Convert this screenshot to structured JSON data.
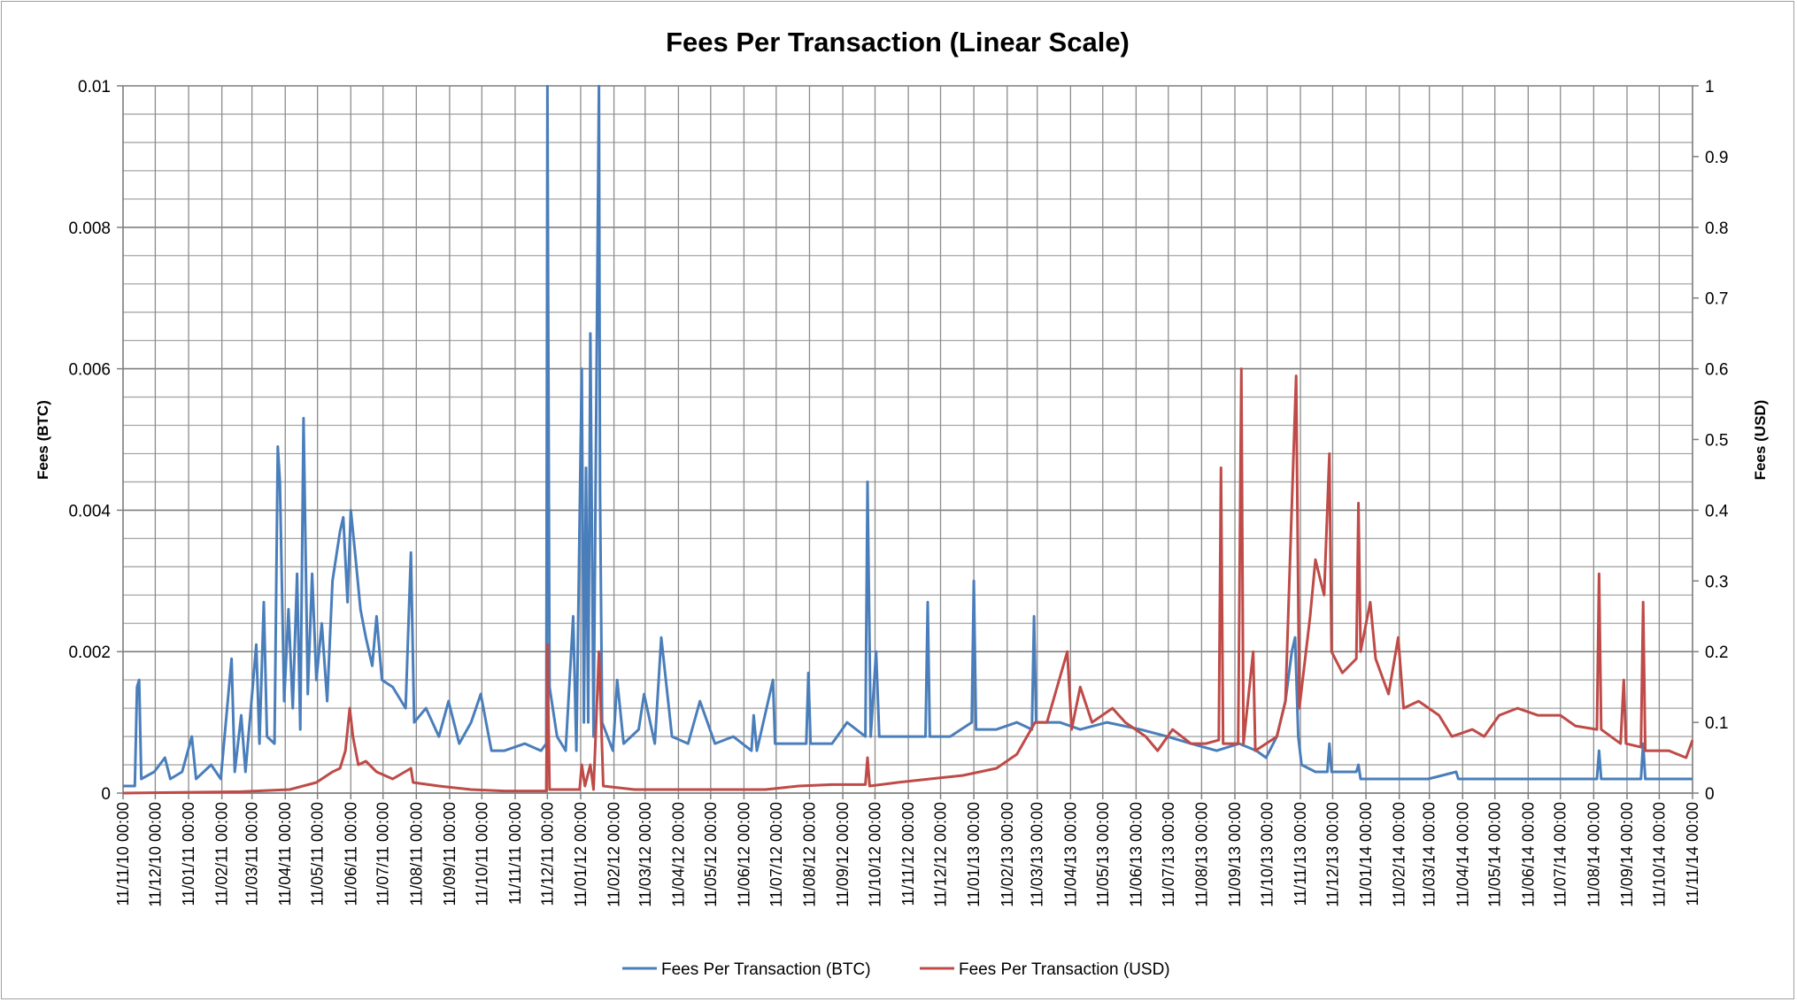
{
  "chart_data": {
    "type": "line",
    "title": "Fees Per Transaction (Linear Scale)",
    "ylabel": "Fees (BTC)",
    "y2label": "Fees (USD)",
    "ylim": [
      0,
      0.01
    ],
    "y2lim": [
      0,
      1
    ],
    "yticks": [
      "0",
      "0.002",
      "0.004",
      "0.006",
      "0.008",
      "0.01"
    ],
    "y2ticks": [
      "0",
      "0.1",
      "0.2",
      "0.3",
      "0.4",
      "0.5",
      "0.6",
      "0.7",
      "0.8",
      "0.9",
      "1"
    ],
    "xlim": [
      "2010-11-11",
      "2014-11-11"
    ],
    "xticks": [
      "11/11/10 00:00",
      "11/12/10 00:00",
      "11/01/11 00:00",
      "11/02/11 00:00",
      "11/03/11 00:00",
      "11/04/11 00:00",
      "11/05/11 00:00",
      "11/06/11 00:00",
      "11/07/11 00:00",
      "11/08/11 00:00",
      "11/09/11 00:00",
      "11/10/11 00:00",
      "11/11/11 00:00",
      "11/12/11 00:00",
      "11/01/12 00:00",
      "11/02/12 00:00",
      "11/03/12 00:00",
      "11/04/12 00:00",
      "11/05/12 00:00",
      "11/06/12 00:00",
      "11/07/12 00:00",
      "11/08/12 00:00",
      "11/09/12 00:00",
      "11/10/12 00:00",
      "11/11/12 00:00",
      "11/12/12 00:00",
      "11/01/13 00:00",
      "11/02/13 00:00",
      "11/03/13 00:00",
      "11/04/13 00:00",
      "11/05/13 00:00",
      "11/06/13 00:00",
      "11/07/13 00:00",
      "11/08/13 00:00",
      "11/09/13 00:00",
      "11/10/13 00:00",
      "11/11/13 00:00",
      "11/12/13 00:00",
      "11/01/14 00:00",
      "11/02/14 00:00",
      "11/03/14 00:00",
      "11/04/14 00:00",
      "11/05/14 00:00",
      "11/06/14 00:00",
      "11/07/14 00:00",
      "11/08/14 00:00",
      "11/09/14 00:00",
      "11/10/14 00:00",
      "11/11/14 00:00"
    ],
    "grid": true,
    "legend": "bottom",
    "series": [
      {
        "name": "Fees Per Transaction (BTC)",
        "axis": "left",
        "color": "#4a7ebb",
        "points": [
          [
            "2010-11-11",
            0.0001
          ],
          [
            "2010-11-22",
            0.0001
          ],
          [
            "2010-11-24",
            0.0015
          ],
          [
            "2010-11-26",
            0.0016
          ],
          [
            "2010-11-28",
            0.0002
          ],
          [
            "2010-12-10",
            0.0003
          ],
          [
            "2010-12-20",
            0.0005
          ],
          [
            "2010-12-25",
            0.0002
          ],
          [
            "2011-01-05",
            0.0003
          ],
          [
            "2011-01-14",
            0.0008
          ],
          [
            "2011-01-18",
            0.0002
          ],
          [
            "2011-02-01",
            0.0004
          ],
          [
            "2011-02-10",
            0.0002
          ],
          [
            "2011-02-20",
            0.0019
          ],
          [
            "2011-02-23",
            0.0003
          ],
          [
            "2011-03-01",
            0.0011
          ],
          [
            "2011-03-05",
            0.0003
          ],
          [
            "2011-03-15",
            0.0021
          ],
          [
            "2011-03-18",
            0.0007
          ],
          [
            "2011-03-22",
            0.0027
          ],
          [
            "2011-03-25",
            0.0008
          ],
          [
            "2011-04-01",
            0.0007
          ],
          [
            "2011-04-04",
            0.0049
          ],
          [
            "2011-04-06",
            0.0044
          ],
          [
            "2011-04-10",
            0.0013
          ],
          [
            "2011-04-14",
            0.0026
          ],
          [
            "2011-04-18",
            0.0012
          ],
          [
            "2011-04-22",
            0.0031
          ],
          [
            "2011-04-25",
            0.0009
          ],
          [
            "2011-04-28",
            0.0053
          ],
          [
            "2011-05-02",
            0.0014
          ],
          [
            "2011-05-06",
            0.0031
          ],
          [
            "2011-05-10",
            0.0016
          ],
          [
            "2011-05-15",
            0.0024
          ],
          [
            "2011-05-20",
            0.0013
          ],
          [
            "2011-05-25",
            0.003
          ],
          [
            "2011-06-01",
            0.0037
          ],
          [
            "2011-06-04",
            0.0039
          ],
          [
            "2011-06-08",
            0.0027
          ],
          [
            "2011-06-11",
            0.004
          ],
          [
            "2011-06-15",
            0.0034
          ],
          [
            "2011-06-20",
            0.0026
          ],
          [
            "2011-06-25",
            0.0022
          ],
          [
            "2011-07-01",
            0.0018
          ],
          [
            "2011-07-05",
            0.0025
          ],
          [
            "2011-07-10",
            0.0016
          ],
          [
            "2011-07-20",
            0.0015
          ],
          [
            "2011-08-01",
            0.0012
          ],
          [
            "2011-08-06",
            0.0034
          ],
          [
            "2011-08-09",
            0.001
          ],
          [
            "2011-08-20",
            0.0012
          ],
          [
            "2011-09-01",
            0.0008
          ],
          [
            "2011-09-10",
            0.0013
          ],
          [
            "2011-09-20",
            0.0007
          ],
          [
            "2011-10-01",
            0.001
          ],
          [
            "2011-10-10",
            0.0014
          ],
          [
            "2011-10-20",
            0.0006
          ],
          [
            "2011-11-01",
            0.0006
          ],
          [
            "2011-11-20",
            0.0007
          ],
          [
            "2011-12-05",
            0.0006
          ],
          [
            "2011-12-10",
            0.0007
          ],
          [
            "2011-12-11",
            0.01
          ],
          [
            "2011-12-13",
            0.0015
          ],
          [
            "2011-12-20",
            0.0008
          ],
          [
            "2011-12-28",
            0.0006
          ],
          [
            "2012-01-04",
            0.0025
          ],
          [
            "2012-01-07",
            0.0006
          ],
          [
            "2012-01-12",
            0.006
          ],
          [
            "2012-01-14",
            0.001
          ],
          [
            "2012-01-16",
            0.0046
          ],
          [
            "2012-01-18",
            0.001
          ],
          [
            "2012-01-20",
            0.0065
          ],
          [
            "2012-01-23",
            0.0008
          ],
          [
            "2012-01-28",
            0.01
          ],
          [
            "2012-01-29",
            0.0043
          ],
          [
            "2012-01-31",
            0.001
          ],
          [
            "2012-02-10",
            0.0006
          ],
          [
            "2012-02-14",
            0.0016
          ],
          [
            "2012-02-20",
            0.0007
          ],
          [
            "2012-03-05",
            0.0009
          ],
          [
            "2012-03-10",
            0.0014
          ],
          [
            "2012-03-20",
            0.0007
          ],
          [
            "2012-03-26",
            0.0022
          ],
          [
            "2012-04-05",
            0.0008
          ],
          [
            "2012-04-20",
            0.0007
          ],
          [
            "2012-05-01",
            0.0013
          ],
          [
            "2012-05-15",
            0.0007
          ],
          [
            "2012-06-01",
            0.0008
          ],
          [
            "2012-06-18",
            0.0006
          ],
          [
            "2012-06-20",
            0.0011
          ],
          [
            "2012-06-23",
            0.0006
          ],
          [
            "2012-07-08",
            0.0016
          ],
          [
            "2012-07-10",
            0.0007
          ],
          [
            "2012-08-08",
            0.0007
          ],
          [
            "2012-08-10",
            0.0017
          ],
          [
            "2012-08-12",
            0.0007
          ],
          [
            "2012-09-01",
            0.0007
          ],
          [
            "2012-09-15",
            0.001
          ],
          [
            "2012-10-02",
            0.0008
          ],
          [
            "2012-10-04",
            0.0044
          ],
          [
            "2012-10-07",
            0.0008
          ],
          [
            "2012-10-12",
            0.002
          ],
          [
            "2012-10-15",
            0.0008
          ],
          [
            "2012-11-01",
            0.0008
          ],
          [
            "2012-11-27",
            0.0008
          ],
          [
            "2012-11-29",
            0.0027
          ],
          [
            "2012-12-01",
            0.0008
          ],
          [
            "2012-12-20",
            0.0008
          ],
          [
            "2013-01-09",
            0.001
          ],
          [
            "2013-01-11",
            0.003
          ],
          [
            "2013-01-13",
            0.0009
          ],
          [
            "2013-02-01",
            0.0009
          ],
          [
            "2013-02-20",
            0.001
          ],
          [
            "2013-03-06",
            0.0009
          ],
          [
            "2013-03-08",
            0.0025
          ],
          [
            "2013-03-10",
            0.001
          ],
          [
            "2013-04-01",
            0.001
          ],
          [
            "2013-04-20",
            0.0009
          ],
          [
            "2013-05-15",
            0.001
          ],
          [
            "2013-06-15",
            0.0009
          ],
          [
            "2013-07-10",
            0.0008
          ],
          [
            "2013-08-01",
            0.0007
          ],
          [
            "2013-08-25",
            0.0006
          ],
          [
            "2013-09-15",
            0.0007
          ],
          [
            "2013-10-01",
            0.0006
          ],
          [
            "2013-10-10",
            0.0005
          ],
          [
            "2013-10-20",
            0.0008
          ],
          [
            "2013-10-28",
            0.0013
          ],
          [
            "2013-11-03",
            0.002
          ],
          [
            "2013-11-06",
            0.0022
          ],
          [
            "2013-11-09",
            0.0008
          ],
          [
            "2013-11-12",
            0.0004
          ],
          [
            "2013-11-25",
            0.0003
          ],
          [
            "2013-12-06",
            0.0003
          ],
          [
            "2013-12-08",
            0.0007
          ],
          [
            "2013-12-10",
            0.0003
          ],
          [
            "2014-01-02",
            0.0003
          ],
          [
            "2014-01-04",
            0.0004
          ],
          [
            "2014-01-06",
            0.0002
          ],
          [
            "2014-02-10",
            0.0002
          ],
          [
            "2014-03-10",
            0.0002
          ],
          [
            "2014-04-05",
            0.0003
          ],
          [
            "2014-04-07",
            0.0002
          ],
          [
            "2014-05-11",
            0.0002
          ],
          [
            "2014-07-11",
            0.0002
          ],
          [
            "2014-08-14",
            0.0002
          ],
          [
            "2014-08-16",
            0.0006
          ],
          [
            "2014-08-18",
            0.0002
          ],
          [
            "2014-09-15",
            0.0002
          ],
          [
            "2014-09-24",
            0.0002
          ],
          [
            "2014-09-26",
            0.0007
          ],
          [
            "2014-09-28",
            0.0002
          ],
          [
            "2014-10-20",
            0.0002
          ],
          [
            "2014-11-11",
            0.0002
          ]
        ]
      },
      {
        "name": "Fees Per Transaction (USD)",
        "axis": "right",
        "color": "#be4b48",
        "points": [
          [
            "2010-11-11",
            0.0
          ],
          [
            "2011-03-01",
            0.002
          ],
          [
            "2011-04-15",
            0.005
          ],
          [
            "2011-05-10",
            0.015
          ],
          [
            "2011-05-25",
            0.03
          ],
          [
            "2011-06-01",
            0.035
          ],
          [
            "2011-06-06",
            0.06
          ],
          [
            "2011-06-10",
            0.12
          ],
          [
            "2011-06-13",
            0.08
          ],
          [
            "2011-06-18",
            0.04
          ],
          [
            "2011-06-25",
            0.045
          ],
          [
            "2011-07-05",
            0.03
          ],
          [
            "2011-07-20",
            0.02
          ],
          [
            "2011-08-06",
            0.035
          ],
          [
            "2011-08-08",
            0.015
          ],
          [
            "2011-09-01",
            0.01
          ],
          [
            "2011-10-01",
            0.005
          ],
          [
            "2011-11-01",
            0.003
          ],
          [
            "2011-12-10",
            0.003
          ],
          [
            "2011-12-11",
            0.21
          ],
          [
            "2011-12-13",
            0.005
          ],
          [
            "2012-01-10",
            0.005
          ],
          [
            "2012-01-12",
            0.04
          ],
          [
            "2012-01-15",
            0.01
          ],
          [
            "2012-01-20",
            0.04
          ],
          [
            "2012-01-23",
            0.005
          ],
          [
            "2012-01-28",
            0.2
          ],
          [
            "2012-02-01",
            0.01
          ],
          [
            "2012-03-01",
            0.005
          ],
          [
            "2012-07-01",
            0.005
          ],
          [
            "2012-08-01",
            0.01
          ],
          [
            "2012-09-01",
            0.012
          ],
          [
            "2012-10-02",
            0.012
          ],
          [
            "2012-10-04",
            0.05
          ],
          [
            "2012-10-06",
            0.01
          ],
          [
            "2012-11-01",
            0.015
          ],
          [
            "2012-12-01",
            0.02
          ],
          [
            "2013-01-01",
            0.025
          ],
          [
            "2013-02-01",
            0.035
          ],
          [
            "2013-02-20",
            0.055
          ],
          [
            "2013-03-09",
            0.1
          ],
          [
            "2013-03-20",
            0.1
          ],
          [
            "2013-04-08",
            0.2
          ],
          [
            "2013-04-12",
            0.09
          ],
          [
            "2013-04-20",
            0.15
          ],
          [
            "2013-05-01",
            0.1
          ],
          [
            "2013-05-20",
            0.12
          ],
          [
            "2013-06-01",
            0.1
          ],
          [
            "2013-06-20",
            0.08
          ],
          [
            "2013-07-01",
            0.06
          ],
          [
            "2013-07-15",
            0.09
          ],
          [
            "2013-08-01",
            0.07
          ],
          [
            "2013-08-15",
            0.07
          ],
          [
            "2013-08-27",
            0.075
          ],
          [
            "2013-08-29",
            0.46
          ],
          [
            "2013-08-31",
            0.07
          ],
          [
            "2013-09-14",
            0.07
          ],
          [
            "2013-09-17",
            0.6
          ],
          [
            "2013-09-19",
            0.07
          ],
          [
            "2013-09-28",
            0.2
          ],
          [
            "2013-09-30",
            0.06
          ],
          [
            "2013-10-20",
            0.08
          ],
          [
            "2013-10-28",
            0.13
          ],
          [
            "2013-11-02",
            0.36
          ],
          [
            "2013-11-07",
            0.59
          ],
          [
            "2013-11-10",
            0.12
          ],
          [
            "2013-11-20",
            0.25
          ],
          [
            "2013-11-25",
            0.33
          ],
          [
            "2013-12-03",
            0.28
          ],
          [
            "2013-12-08",
            0.48
          ],
          [
            "2013-12-10",
            0.2
          ],
          [
            "2013-12-20",
            0.17
          ],
          [
            "2014-01-02",
            0.19
          ],
          [
            "2014-01-04",
            0.41
          ],
          [
            "2014-01-06",
            0.2
          ],
          [
            "2014-01-15",
            0.27
          ],
          [
            "2014-01-20",
            0.19
          ],
          [
            "2014-02-01",
            0.14
          ],
          [
            "2014-02-10",
            0.22
          ],
          [
            "2014-02-15",
            0.12
          ],
          [
            "2014-03-01",
            0.13
          ],
          [
            "2014-03-20",
            0.11
          ],
          [
            "2014-04-01",
            0.08
          ],
          [
            "2014-04-20",
            0.09
          ],
          [
            "2014-05-01",
            0.08
          ],
          [
            "2014-05-15",
            0.11
          ],
          [
            "2014-06-01",
            0.12
          ],
          [
            "2014-06-20",
            0.11
          ],
          [
            "2014-07-11",
            0.11
          ],
          [
            "2014-07-25",
            0.095
          ],
          [
            "2014-08-14",
            0.09
          ],
          [
            "2014-08-16",
            0.31
          ],
          [
            "2014-08-18",
            0.09
          ],
          [
            "2014-09-05",
            0.07
          ],
          [
            "2014-09-08",
            0.16
          ],
          [
            "2014-09-10",
            0.07
          ],
          [
            "2014-09-24",
            0.065
          ],
          [
            "2014-09-26",
            0.27
          ],
          [
            "2014-09-28",
            0.06
          ],
          [
            "2014-10-20",
            0.06
          ],
          [
            "2014-11-05",
            0.05
          ],
          [
            "2014-11-11",
            0.075
          ]
        ]
      }
    ]
  }
}
